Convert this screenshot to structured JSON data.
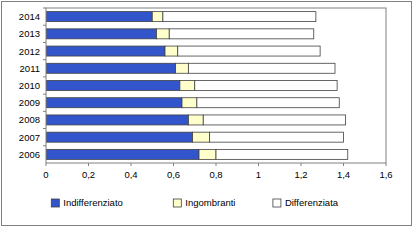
{
  "chart_data": {
    "type": "bar",
    "orientation": "horizontal",
    "stacked": true,
    "grid": false,
    "legend": "bottom",
    "categories": [
      "2014",
      "2013",
      "2012",
      "2011",
      "2010",
      "2009",
      "2008",
      "2007",
      "2006"
    ],
    "series": [
      {
        "name": "Indifferenziato",
        "color": "#3355cc",
        "values": [
          0.5,
          0.52,
          0.56,
          0.61,
          0.63,
          0.64,
          0.67,
          0.69,
          0.72
        ]
      },
      {
        "name": "Ingombranti",
        "color": "#ffffcc",
        "values": [
          0.05,
          0.06,
          0.06,
          0.06,
          0.07,
          0.07,
          0.07,
          0.08,
          0.08
        ]
      },
      {
        "name": "Differenziata",
        "color": "#ffffff",
        "values": [
          0.72,
          0.68,
          0.67,
          0.69,
          0.67,
          0.67,
          0.67,
          0.63,
          0.62
        ]
      }
    ],
    "xlim": [
      0,
      1.6
    ],
    "xticks": [
      0,
      {
        "value": 0.2,
        "label": "0,2"
      },
      {
        "value": 0.4,
        "label": "0,4"
      },
      {
        "value": 0.6,
        "label": "0,6"
      },
      {
        "value": 0.8,
        "label": "0,8"
      },
      1,
      {
        "value": 1.2,
        "label": "1,2"
      },
      {
        "value": 1.4,
        "label": "1,4"
      },
      {
        "value": 1.6,
        "label": "1,6"
      }
    ]
  }
}
